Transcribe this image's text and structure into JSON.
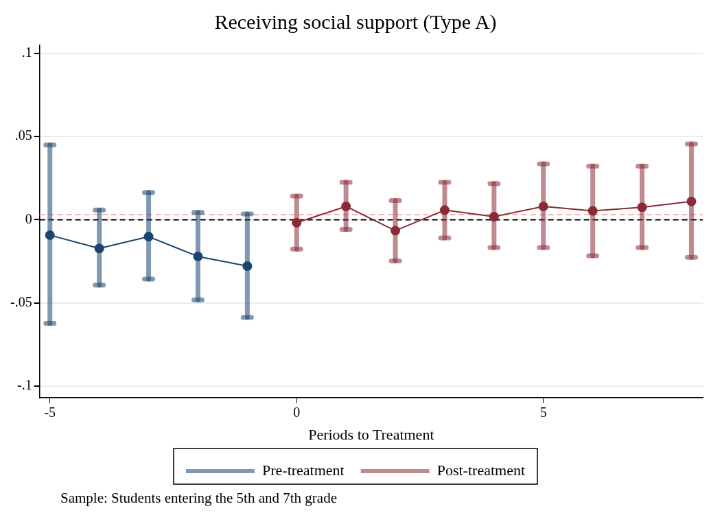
{
  "chart_data": {
    "type": "line",
    "title": "Receiving social support (Type A)",
    "xlabel": "Periods to Treatment",
    "annotations": [
      "Sample: Students entering the 5th and 7th grade"
    ],
    "xlim": [
      -5.21,
      8.23
    ],
    "xticks": [
      -5,
      0,
      5
    ],
    "ylim": [
      -0.107,
      0.105
    ],
    "yticks": [
      {
        "value": -0.1,
        "label": "-.1"
      },
      {
        "value": -0.05,
        "label": "-.05"
      },
      0,
      {
        "value": 0.05,
        "label": ".05"
      },
      {
        "value": 0.1,
        "label": ".1"
      }
    ],
    "grid": "y",
    "legend": "bottom",
    "marker": "circle",
    "line_style": "solid",
    "ref_lines": [
      {
        "axis": "y",
        "value": 0,
        "color": "#000000",
        "line_style": "dashed"
      },
      {
        "axis": "y",
        "value": 0.003,
        "color": "#f4b6b6",
        "line_style": "dashed"
      }
    ],
    "series": [
      {
        "name": "Pre-treatment",
        "color": "#1a4570",
        "x": [
          -5,
          -4,
          -3,
          -2,
          -1
        ],
        "values": [
          -0.0093,
          -0.0173,
          -0.0102,
          -0.0221,
          -0.0279
        ],
        "errors": [
          [
            -0.0624,
            0.045
          ],
          [
            -0.0394,
            0.0058
          ],
          [
            -0.0358,
            0.0164
          ],
          [
            -0.0482,
            0.0044
          ],
          [
            -0.0588,
            0.0035
          ]
        ]
      },
      {
        "name": "Post-treatment",
        "color": "#8b2a35",
        "x": [
          0,
          1,
          2,
          3,
          4,
          5,
          6,
          7,
          8
        ],
        "values": [
          -0.0018,
          0.008,
          -0.0066,
          0.0058,
          0.0018,
          0.008,
          0.0053,
          0.0075,
          0.011
        ],
        "errors": [
          [
            -0.0177,
            0.0142
          ],
          [
            -0.0058,
            0.0226
          ],
          [
            -0.0248,
            0.0115
          ],
          [
            -0.011,
            0.0226
          ],
          [
            -0.0168,
            0.0217
          ],
          [
            -0.0168,
            0.0336
          ],
          [
            -0.0217,
            0.0323
          ],
          [
            -0.0168,
            0.0323
          ],
          [
            -0.0226,
            0.0456
          ]
        ]
      }
    ]
  }
}
